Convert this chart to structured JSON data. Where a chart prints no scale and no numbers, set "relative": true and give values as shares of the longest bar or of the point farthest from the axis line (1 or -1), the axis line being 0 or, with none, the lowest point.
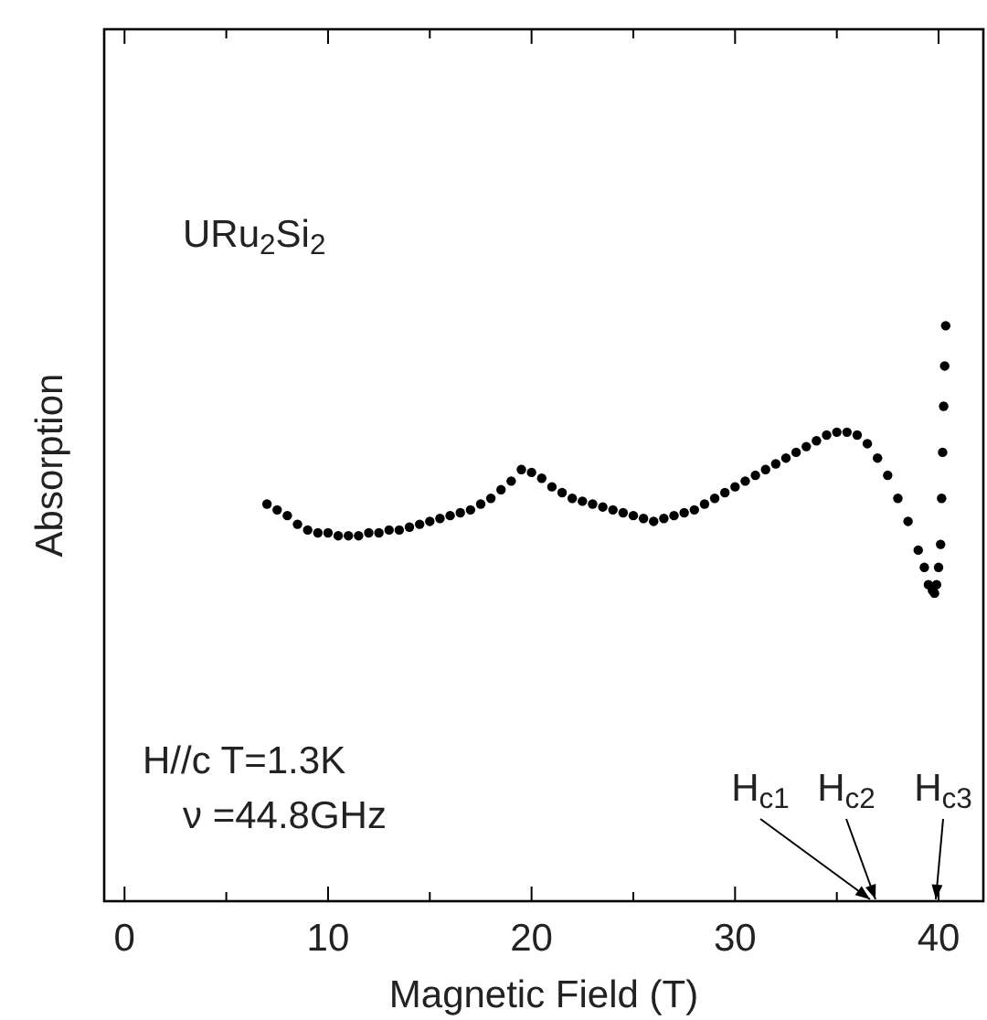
{
  "chart_data": {
    "type": "scatter",
    "xlabel": "Magnetic Field (T)",
    "ylabel": "Absorption",
    "relative": true,
    "marker": "circle",
    "grid": false,
    "xlim": [
      -1,
      42.2
    ],
    "xticks": [
      0,
      {
        "value": 5,
        "label": null
      },
      10,
      {
        "value": 15,
        "label": null
      },
      20,
      {
        "value": 25,
        "label": null
      },
      30,
      {
        "value": 35,
        "label": null
      },
      40
    ],
    "series": [
      {
        "color": "#000000",
        "x": [
          7,
          7.5,
          8,
          8.5,
          9,
          9.5,
          10,
          10.5,
          11,
          11.5,
          12,
          12.5,
          13,
          13.5,
          14,
          14.5,
          15,
          15.5,
          16,
          16.5,
          17,
          17.5,
          18,
          18.5,
          19,
          19.5,
          20,
          20.5,
          21,
          21.5,
          22,
          22.5,
          23,
          23.5,
          24,
          24.5,
          25,
          25.5,
          26,
          26.5,
          27,
          27.5,
          28,
          28.5,
          29,
          29.5,
          30,
          30.5,
          31,
          31.5,
          32,
          32.5,
          33,
          33.5,
          34,
          34.5,
          35,
          35.5,
          36,
          36.5,
          37,
          37.5,
          38,
          38.5,
          39,
          39.3,
          39.5,
          39.7,
          39.8,
          39.9,
          40,
          40.1,
          40.15,
          40.2,
          40.25,
          40.3,
          40.35
        ],
        "values": [
          0.69,
          0.68,
          0.67,
          0.655,
          0.645,
          0.64,
          0.64,
          0.635,
          0.635,
          0.635,
          0.64,
          0.64,
          0.645,
          0.645,
          0.65,
          0.655,
          0.66,
          0.665,
          0.67,
          0.675,
          0.68,
          0.69,
          0.7,
          0.715,
          0.73,
          0.75,
          0.745,
          0.735,
          0.72,
          0.71,
          0.7,
          0.695,
          0.69,
          0.685,
          0.68,
          0.675,
          0.67,
          0.665,
          0.66,
          0.665,
          0.67,
          0.675,
          0.68,
          0.69,
          0.7,
          0.71,
          0.72,
          0.73,
          0.74,
          0.75,
          0.76,
          0.77,
          0.78,
          0.79,
          0.8,
          0.81,
          0.815,
          0.815,
          0.81,
          0.795,
          0.77,
          0.74,
          0.7,
          0.66,
          0.61,
          0.58,
          0.55,
          0.54,
          0.535,
          0.55,
          0.58,
          0.62,
          0.7,
          0.78,
          0.86,
          0.93,
          1.0
        ]
      }
    ],
    "annotations": [
      "URu$_{2}$Si$_{2}$",
      "H//c T=1.3K",
      "ν =44.8GHz",
      "H$_{c1}$",
      "H$_{c2}$",
      "H$_{c3}$"
    ]
  }
}
